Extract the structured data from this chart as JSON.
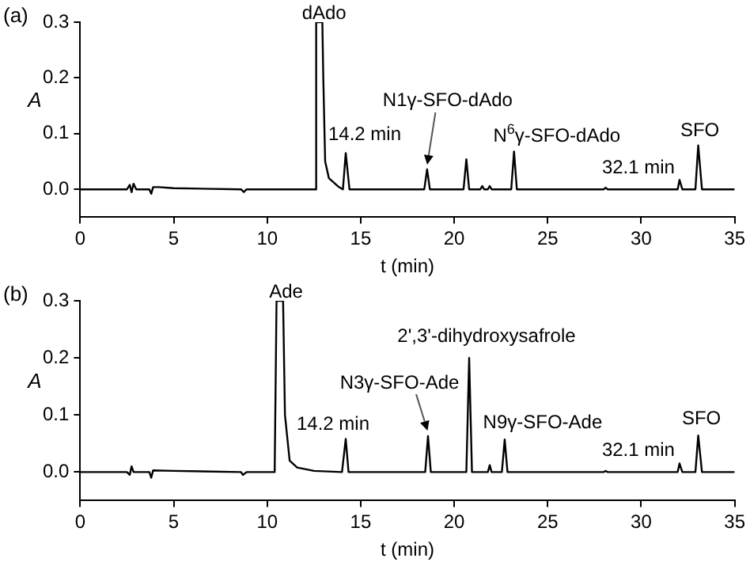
{
  "chart_data": [
    {
      "type": "line",
      "annotations": [
        "(a)",
        {
          "text": "dAdo",
          "x": 12.62,
          "y": 0.3
        },
        {
          "text": "14.2 min",
          "x": 14.2,
          "y": 0.065
        },
        {
          "text": "N1γ-SFO-dAdo",
          "x": 18.55,
          "y": 0.036
        },
        {
          "text": "N$^{6}$γ-SFO-dAdo",
          "x": 23.2,
          "y": 0.068
        },
        {
          "text": "32.1 min",
          "x": 32.05,
          "y": 0.017
        },
        {
          "text": "SFO",
          "x": 33.05,
          "y": 0.079
        }
      ],
      "xlabel": "t (min)",
      "ylabel": "A",
      "xlim": [
        0,
        35
      ],
      "xticks": [
        0,
        5,
        10,
        15,
        20,
        25,
        30,
        35
      ],
      "ylim": [
        -0.05,
        0.3
      ],
      "yticks": [
        {
          "value": 0,
          "label": "0.0"
        },
        {
          "value": 0.1,
          "label": "0.1"
        },
        {
          "value": 0.2,
          "label": "0.2"
        },
        {
          "value": 0.3,
          "label": "0.3"
        }
      ],
      "grid": false,
      "legend": false,
      "marker": "none",
      "line_style": "solid",
      "series": [
        {
          "color": "#000000",
          "x": [
            0,
            2.5,
            2.65,
            2.75,
            2.85,
            3.0,
            3.7,
            3.8,
            3.9,
            4.2,
            5,
            8.6,
            8.75,
            8.9,
            12.55,
            12.62,
            12.95,
            13.0,
            13.1,
            13.3,
            13.8,
            14.05,
            14.2,
            14.4,
            18.4,
            18.55,
            18.7,
            20.5,
            20.65,
            20.8,
            21.4,
            21.5,
            21.6,
            21.8,
            21.9,
            22.0,
            23.05,
            23.2,
            23.35,
            28.0,
            28.1,
            28.2,
            31.95,
            32.05,
            32.2,
            32.9,
            33.05,
            33.25,
            35
          ],
          "values": [
            0,
            0,
            0.008,
            -0.005,
            0.01,
            0,
            0,
            -0.008,
            0.004,
            0.004,
            0.002,
            0,
            -0.005,
            0,
            0,
            0.3,
            0.3,
            0.2,
            0.05,
            0.02,
            0.005,
            0,
            0.065,
            0,
            0,
            0.036,
            0,
            0,
            0.054,
            0,
            0,
            0.006,
            0,
            0,
            0.006,
            0,
            0,
            0.068,
            0,
            0,
            0.003,
            0,
            0,
            0.017,
            0,
            0,
            0.079,
            0,
            0
          ]
        }
      ]
    },
    {
      "type": "line",
      "annotations": [
        "(b)",
        {
          "text": "Ade",
          "x": 10.5,
          "y": 0.3
        },
        {
          "text": "14.2 min",
          "x": 14.2,
          "y": 0.058
        },
        {
          "text": "N3γ-SFO-Ade",
          "x": 18.6,
          "y": 0.063
        },
        {
          "text": "2',3'-dihydroxysafrole",
          "x": 20.8,
          "y": 0.2
        },
        {
          "text": "N9γ-SFO-Ade",
          "x": 22.7,
          "y": 0.057
        },
        {
          "text": "32.1 min",
          "x": 32.05,
          "y": 0.015
        },
        {
          "text": "SFO",
          "x": 33.05,
          "y": 0.064
        }
      ],
      "xlabel": "t (min)",
      "ylabel": "A",
      "xlim": [
        0,
        35
      ],
      "xticks": [
        0,
        5,
        10,
        15,
        20,
        25,
        30,
        35
      ],
      "ylim": [
        -0.05,
        0.3
      ],
      "yticks": [
        {
          "value": 0,
          "label": "0.0"
        },
        {
          "value": 0.1,
          "label": "0.1"
        },
        {
          "value": 0.2,
          "label": "0.2"
        },
        {
          "value": 0.3,
          "label": "0.3"
        }
      ],
      "grid": false,
      "legend": false,
      "marker": "none",
      "line_style": "solid",
      "series": [
        {
          "color": "#000000",
          "x": [
            0,
            2.5,
            2.65,
            2.75,
            2.85,
            3.7,
            3.8,
            3.9,
            5,
            8.6,
            8.7,
            8.9,
            10.4,
            10.5,
            10.85,
            10.95,
            11.2,
            11.6,
            12.5,
            14.0,
            14.2,
            14.35,
            18.45,
            18.6,
            18.75,
            20.65,
            20.8,
            20.95,
            21.8,
            21.9,
            22.0,
            22.55,
            22.7,
            22.85,
            28.0,
            28.1,
            28.2,
            31.95,
            32.05,
            32.2,
            32.9,
            33.05,
            33.25,
            35
          ],
          "values": [
            0,
            0,
            -0.005,
            0.01,
            0,
            0,
            -0.01,
            0.003,
            0.002,
            0,
            -0.005,
            0,
            0,
            0.3,
            0.3,
            0.1,
            0.02,
            0.008,
            0.002,
            0,
            0.058,
            0,
            0,
            0.063,
            0,
            0,
            0.2,
            0,
            0,
            0.012,
            0,
            0,
            0.057,
            0,
            0,
            0.002,
            0,
            0,
            0.015,
            0,
            0,
            0.064,
            0,
            0
          ]
        }
      ]
    }
  ]
}
